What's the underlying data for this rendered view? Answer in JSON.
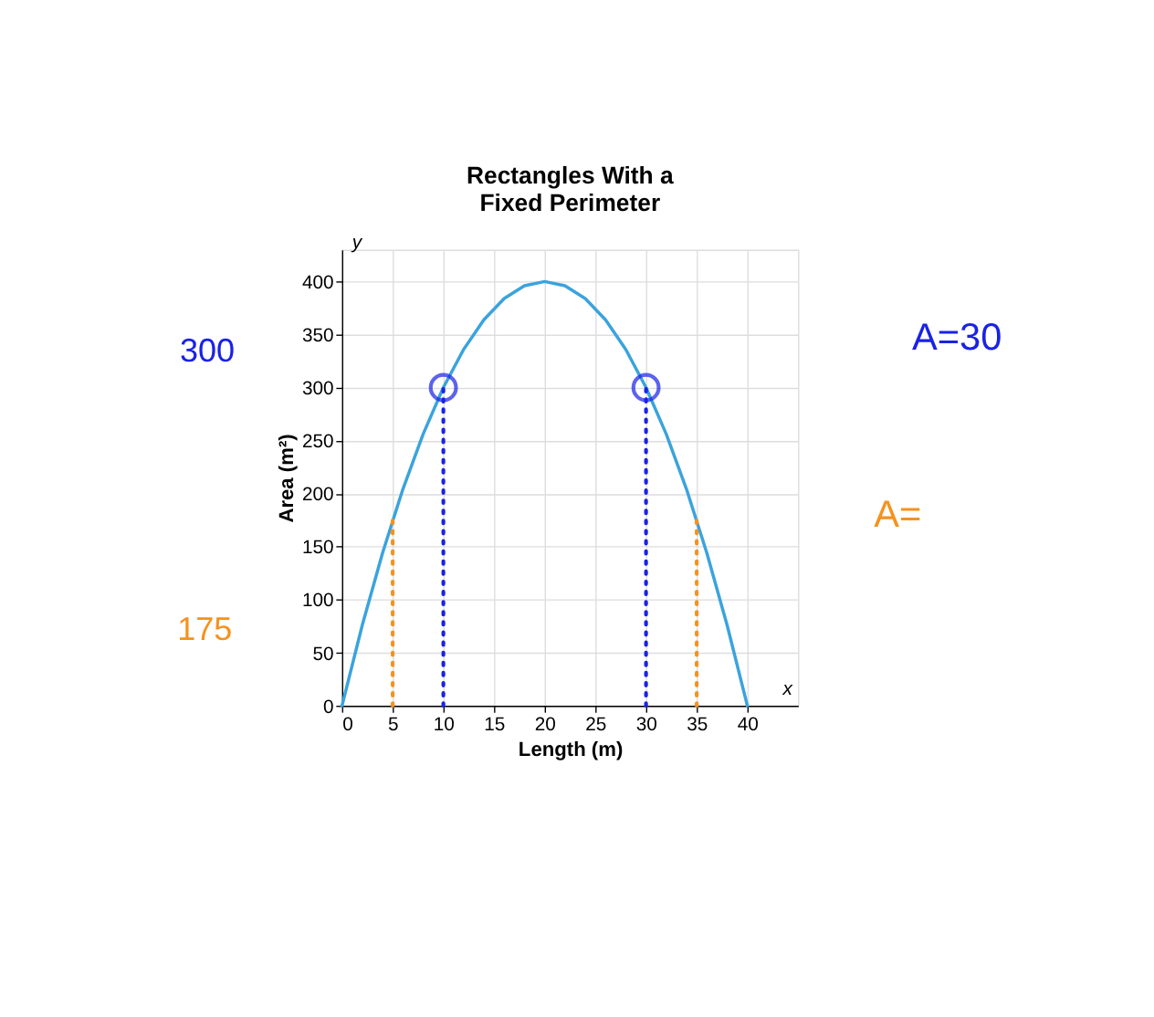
{
  "chart_data": {
    "type": "line",
    "title": "Rectangles With a\nFixed Perimeter",
    "xlabel": "Length (m)",
    "ylabel": "Area (m²)",
    "xlim": [
      0,
      45
    ],
    "xticks": [
      0,
      5,
      10,
      15,
      20,
      25,
      30,
      35,
      40
    ],
    "ylim": [
      0,
      430
    ],
    "yticks": [
      0,
      50,
      100,
      150,
      200,
      250,
      300,
      350,
      400
    ],
    "grid": true,
    "annotations": [
      "y",
      "x",
      "300",
      "A=30",
      "175",
      "A="
    ],
    "series": [
      {
        "color": "#3ba3dc",
        "line_style": "solid",
        "x": [
          0,
          2,
          4,
          6,
          8,
          10,
          12,
          14,
          16,
          18,
          20,
          22,
          24,
          26,
          28,
          30,
          32,
          34,
          36,
          38,
          40
        ],
        "values": [
          0,
          76,
          144,
          204,
          256,
          300,
          336,
          364,
          384,
          396,
          400,
          396,
          384,
          364,
          336,
          300,
          256,
          204,
          144,
          76,
          0
        ]
      },
      {
        "type": "line",
        "color": "#1a22e6",
        "line_style": "dotted",
        "x": [
          10,
          10
        ],
        "values": [
          0,
          300
        ]
      },
      {
        "type": "line",
        "color": "#1a22e6",
        "line_style": "dotted",
        "x": [
          30,
          30
        ],
        "values": [
          0,
          300
        ]
      },
      {
        "type": "line",
        "color": "#f5921e",
        "line_style": "dotted",
        "x": [
          5,
          5
        ],
        "values": [
          0,
          175
        ]
      },
      {
        "type": "line",
        "color": "#f5921e",
        "line_style": "dotted",
        "x": [
          35,
          35
        ],
        "values": [
          0,
          175
        ]
      },
      {
        "type": "scatter",
        "marker": "circle",
        "color": "#1a22e6",
        "x": [
          10,
          30
        ],
        "values": [
          300,
          300
        ]
      }
    ]
  }
}
